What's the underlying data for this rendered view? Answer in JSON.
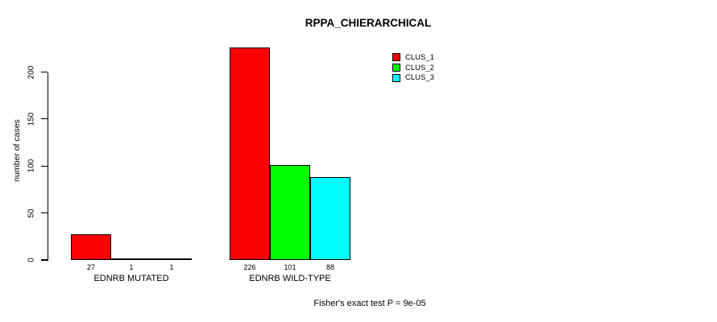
{
  "chart_data": {
    "type": "bar",
    "title": "RPPA_CHIERARCHICAL",
    "ylabel": "number of cases",
    "xlabel": "",
    "ylim": [
      0,
      234
    ],
    "yticks": [
      0,
      50,
      100,
      150,
      200
    ],
    "grid": false,
    "legend_position": "top-right-inside",
    "series": [
      {
        "name": "CLUS_1",
        "color": "#ff0000"
      },
      {
        "name": "CLUS_2",
        "color": "#00ff00"
      },
      {
        "name": "CLUS_3",
        "color": "#00ffff"
      }
    ],
    "categories": [
      "EDNRB MUTATED",
      "EDNRB WILD-TYPE"
    ],
    "groups": [
      {
        "label": "EDNRB MUTATED",
        "values": [
          27,
          1,
          1
        ]
      },
      {
        "label": "EDNRB WILD-TYPE",
        "values": [
          226,
          101,
          88
        ]
      }
    ],
    "bar_value_labels": [
      [
        "27",
        "1",
        "1"
      ],
      [
        "226",
        "101",
        "88"
      ]
    ],
    "footnote": "Fisher's exact test P = 9e-05"
  },
  "colors": {
    "axis": "#000000",
    "text": "#000000",
    "background": "#ffffff"
  }
}
